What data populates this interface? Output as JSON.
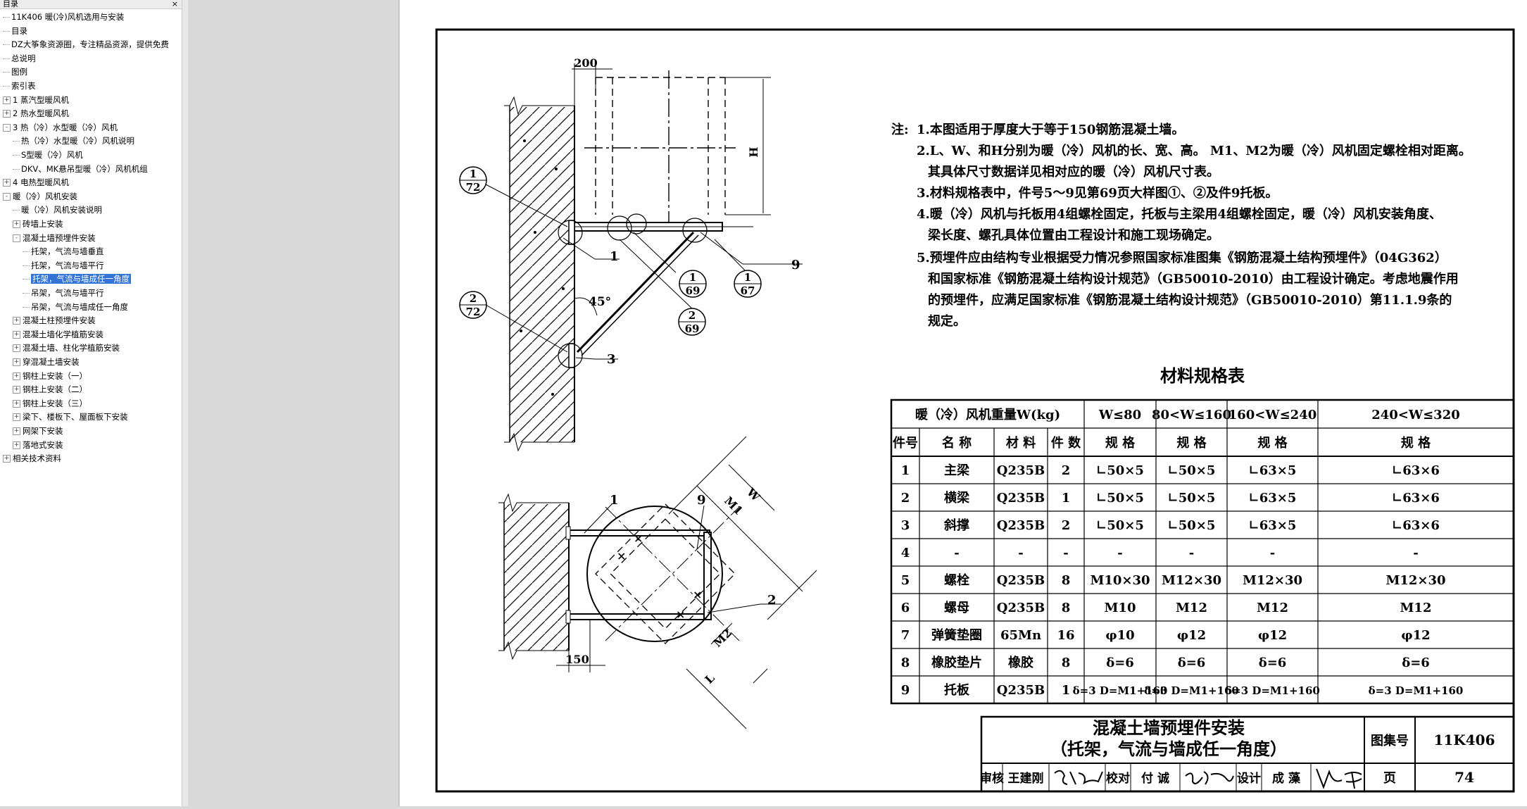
{
  "sidebar": {
    "title": "目录",
    "close_glyph": "×",
    "items": [
      {
        "label": "11K406 暖(冷)风机选用与安装",
        "depth": 0,
        "toggle": ""
      },
      {
        "label": "目录",
        "depth": 0,
        "toggle": ""
      },
      {
        "label": "DZ大筝象资源圈，专注精品资源，提供免费",
        "depth": 0,
        "toggle": ""
      },
      {
        "label": "总说明",
        "depth": 0,
        "toggle": ""
      },
      {
        "label": "图例",
        "depth": 0,
        "toggle": ""
      },
      {
        "label": "索引表",
        "depth": 0,
        "toggle": ""
      },
      {
        "label": "1 蒸汽型暖风机",
        "depth": 0,
        "toggle": "+"
      },
      {
        "label": "2 热水型暖风机",
        "depth": 0,
        "toggle": "+"
      },
      {
        "label": "3 热（冷）水型暖（冷）风机",
        "depth": 0,
        "toggle": "-"
      },
      {
        "label": "热（冷）水型暖（冷）风机说明",
        "depth": 1,
        "toggle": ""
      },
      {
        "label": "S型暖（冷）风机",
        "depth": 1,
        "toggle": ""
      },
      {
        "label": "DKV、MK悬吊型暖（冷）风机机组",
        "depth": 1,
        "toggle": ""
      },
      {
        "label": "4 电热型暖风机",
        "depth": 0,
        "toggle": "+"
      },
      {
        "label": "暖（冷）风机安装",
        "depth": 0,
        "toggle": "-"
      },
      {
        "label": "暖（冷）风机安装说明",
        "depth": 1,
        "toggle": ""
      },
      {
        "label": "砖墙上安装",
        "depth": 1,
        "toggle": "+"
      },
      {
        "label": "混凝土墙预埋件安装",
        "depth": 1,
        "toggle": "-"
      },
      {
        "label": "托架，气流与墙垂直",
        "depth": 2,
        "toggle": ""
      },
      {
        "label": "托架，气流与墙平行",
        "depth": 2,
        "toggle": ""
      },
      {
        "label": "托架，气流与墙成任一角度",
        "depth": 2,
        "toggle": "",
        "selected": true
      },
      {
        "label": "吊架，气流与墙平行",
        "depth": 2,
        "toggle": ""
      },
      {
        "label": "吊架，气流与墙成任一角度",
        "depth": 2,
        "toggle": ""
      },
      {
        "label": "混凝土柱预埋件安装",
        "depth": 1,
        "toggle": "+"
      },
      {
        "label": "混凝土墙化学植筋安装",
        "depth": 1,
        "toggle": "+"
      },
      {
        "label": "混凝土墙、柱化学植筋安装",
        "depth": 1,
        "toggle": "+"
      },
      {
        "label": "穿混凝土墙安装",
        "depth": 1,
        "toggle": "+"
      },
      {
        "label": "钢柱上安装（一）",
        "depth": 1,
        "toggle": "+"
      },
      {
        "label": "钢柱上安装（二）",
        "depth": 1,
        "toggle": "+"
      },
      {
        "label": "钢柱上安装（三）",
        "depth": 1,
        "toggle": "+"
      },
      {
        "label": "梁下、楼板下、屋面板下安装",
        "depth": 1,
        "toggle": "+"
      },
      {
        "label": "网架下安装",
        "depth": 1,
        "toggle": "+"
      },
      {
        "label": "落地式安装",
        "depth": 1,
        "toggle": "+"
      },
      {
        "label": "相关技术资料",
        "depth": 0,
        "toggle": "+"
      }
    ]
  },
  "drawing": {
    "dims": {
      "d200": "200",
      "d150": "150",
      "H": "H",
      "W": "W",
      "L": "L",
      "M1": "M1",
      "M2": "M2",
      "angle": "45°"
    },
    "leaders": [
      "1",
      "3",
      "9",
      "2",
      "1",
      "9"
    ],
    "refs": [
      {
        "num": "1",
        "den": "72"
      },
      {
        "num": "2",
        "den": "72"
      },
      {
        "num": "1",
        "den": "69"
      },
      {
        "num": "2",
        "den": "69"
      },
      {
        "num": "1",
        "den": "67"
      }
    ]
  },
  "notes": {
    "prefix": "注:",
    "lines": [
      "1.本图适用于厚度大于等于150钢筋混凝土墙。",
      "2.L、W、和H分别为暖（冷）风机的长、宽、高。 M1、M2为暖（冷）风机固定螺栓相对距离。",
      "其具体尺寸数据详见相对应的暖（冷）风机尺寸表。",
      "3.材料规格表中，件号5～9见第69页大样图①、②及件9托板。",
      "4.暖（冷）风机与托板用4组螺栓固定，托板与主梁用4组螺栓固定，暖（冷）风机安装角度、",
      "梁长度、螺孔具体位置由工程设计和施工现场确定。",
      "5.预埋件应由结构专业根据受力情况参照国家标准图集《钢筋混凝土结构预埋件》（04G362）",
      "和国家标准《钢筋混凝土结构设计规范》（GB50010-2010）由工程设计确定。考虑地震作用",
      "的预埋件，应满足国家标准《钢筋混凝土结构设计规范》（GB50010-2010）第11.1.9条的",
      "规定。"
    ]
  },
  "table": {
    "title": "材料规格表",
    "weight_label": "暖（冷）风机重量W(kg)",
    "weight_ranges": [
      "W≤80",
      "80<W≤160",
      "160<W≤240",
      "240<W≤320"
    ],
    "columns": [
      "件号",
      "名  称",
      "材  料",
      "件 数",
      "规  格",
      "规  格",
      "规  格",
      "规  格"
    ],
    "rows": [
      [
        "1",
        "主梁",
        "Q235B",
        "2",
        "∟50×5",
        "∟50×5",
        "∟63×5",
        "∟63×6"
      ],
      [
        "2",
        "横梁",
        "Q235B",
        "1",
        "∟50×5",
        "∟50×5",
        "∟63×5",
        "∟63×6"
      ],
      [
        "3",
        "斜撑",
        "Q235B",
        "2",
        "∟50×5",
        "∟50×5",
        "∟63×5",
        "∟63×6"
      ],
      [
        "4",
        "-",
        "-",
        "-",
        "-",
        "-",
        "-",
        "-"
      ],
      [
        "5",
        "螺栓",
        "Q235B",
        "8",
        "M10×30",
        "M12×30",
        "M12×30",
        "M12×30"
      ],
      [
        "6",
        "螺母",
        "Q235B",
        "8",
        "M10",
        "M12",
        "M12",
        "M12"
      ],
      [
        "7",
        "弹簧垫圈",
        "65Mn",
        "16",
        "φ10",
        "φ12",
        "φ12",
        "φ12"
      ],
      [
        "8",
        "橡胶垫片",
        "橡胶",
        "8",
        "δ=6",
        "δ=6",
        "δ=6",
        "δ=6"
      ],
      [
        "9",
        "托板",
        "Q235B",
        "1",
        "δ=3 D=M1+160",
        "δ=3 D=M1+160",
        "δ=3 D=M1+160",
        "δ=3 D=M1+160"
      ]
    ]
  },
  "title_block": {
    "title1": "混凝土墙预埋件安装",
    "title2": "（托架，气流与墙成任一角度）",
    "atlas_label": "图集号",
    "atlas_no": "11K406",
    "page_label": "页",
    "page_no": "74",
    "review_label": "审核",
    "reviewer": "王建刚",
    "check_label": "校对",
    "checker": "付 诚",
    "design_label": "设计",
    "designer": "成 藻"
  }
}
